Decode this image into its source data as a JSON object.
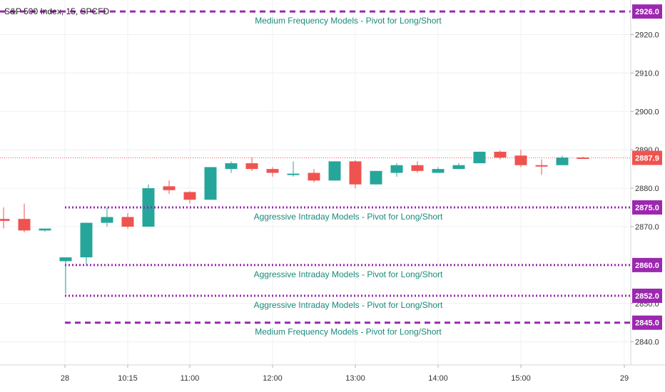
{
  "symbol_title": "S&P 500 Index, 15, SPCFD",
  "chart_data": {
    "type": "candlestick",
    "up_color": "#26a69a",
    "down_color": "#ef5350",
    "level_color": "#9c27b0",
    "last_price_color": "#ef5350",
    "grid": true,
    "x_labels": [
      "28",
      "10:15",
      "11:00",
      "12:00",
      "13:00",
      "14:00",
      "15:00",
      "29"
    ],
    "y_ticks": [
      "2840.0",
      "2850.0",
      "2870.0",
      "2880.0",
      "2890.0",
      "2900.0",
      "2910.0",
      "2920.0"
    ],
    "y_range": [
      2834,
      2929
    ],
    "last_price": {
      "value": "2887.9"
    },
    "levels": [
      {
        "price": 2926.0,
        "badge": "2926.0",
        "style": "dashed",
        "label": "Medium Frequency Models - Pivot for Long/Short",
        "label_pos": "below"
      },
      {
        "price": 2875.0,
        "badge": "2875.0",
        "style": "dotted",
        "label": "Aggressive Intraday Models - Pivot for Long/Short",
        "label_pos": "below"
      },
      {
        "price": 2860.0,
        "badge": "2860.0",
        "style": "dotted",
        "label": "Aggressive Intraday Models - Pivot for Long/Short",
        "label_pos": "below"
      },
      {
        "price": 2852.0,
        "badge": "2852.0",
        "style": "dotted",
        "label": "Aggressive Intraday Models - Pivot for Long/Short",
        "label_pos": "below"
      },
      {
        "price": 2845.0,
        "badge": "2845.0",
        "style": "dashed",
        "label": "Medium Frequency Models - Pivot for Long/Short",
        "label_pos": "below"
      }
    ],
    "candles": [
      {
        "o": 2872,
        "h": 2875,
        "l": 2869.5,
        "c": 2871.5
      },
      {
        "o": 2872,
        "h": 2876,
        "l": 2868.5,
        "c": 2869
      },
      {
        "o": 2869,
        "h": 2869.3,
        "l": 2868.7,
        "c": 2869.5
      },
      {
        "o": 2861,
        "h": 2862,
        "l": 2852.5,
        "c": 2862
      },
      {
        "o": 2862,
        "h": 2871,
        "l": 2860,
        "c": 2871
      },
      {
        "o": 2871,
        "h": 2875,
        "l": 2870,
        "c": 2872.5
      },
      {
        "o": 2872.5,
        "h": 2873.5,
        "l": 2869.5,
        "c": 2870
      },
      {
        "o": 2870,
        "h": 2881,
        "l": 2870,
        "c": 2880
      },
      {
        "o": 2880.5,
        "h": 2882,
        "l": 2878.5,
        "c": 2879.5
      },
      {
        "o": 2879,
        "h": 2879.2,
        "l": 2876,
        "c": 2877
      },
      {
        "o": 2877,
        "h": 2885.5,
        "l": 2877,
        "c": 2885.5
      },
      {
        "o": 2885,
        "h": 2887,
        "l": 2884,
        "c": 2886.5
      },
      {
        "o": 2886.5,
        "h": 2888,
        "l": 2884.5,
        "c": 2885
      },
      {
        "o": 2885,
        "h": 2885.5,
        "l": 2883,
        "c": 2884
      },
      {
        "o": 2883.5,
        "h": 2887,
        "l": 2883,
        "c": 2883.8
      },
      {
        "o": 2884,
        "h": 2885,
        "l": 2881.5,
        "c": 2882
      },
      {
        "o": 2882,
        "h": 2887,
        "l": 2882,
        "c": 2887
      },
      {
        "o": 2887,
        "h": 2887.3,
        "l": 2880,
        "c": 2881
      },
      {
        "o": 2881,
        "h": 2884.5,
        "l": 2881,
        "c": 2884.5
      },
      {
        "o": 2884,
        "h": 2886.5,
        "l": 2883,
        "c": 2886
      },
      {
        "o": 2886,
        "h": 2887,
        "l": 2884,
        "c": 2884.5
      },
      {
        "o": 2884,
        "h": 2885.5,
        "l": 2884,
        "c": 2885
      },
      {
        "o": 2885,
        "h": 2886.5,
        "l": 2885,
        "c": 2886
      },
      {
        "o": 2886.5,
        "h": 2889.5,
        "l": 2886.5,
        "c": 2889.5
      },
      {
        "o": 2889.5,
        "h": 2889.8,
        "l": 2887.5,
        "c": 2888
      },
      {
        "o": 2888.5,
        "h": 2890,
        "l": 2885.5,
        "c": 2886
      },
      {
        "o": 2886,
        "h": 2887.5,
        "l": 2883.5,
        "c": 2885.8
      },
      {
        "o": 2886,
        "h": 2888.5,
        "l": 2886,
        "c": 2888
      },
      {
        "o": 2888,
        "h": 2888.2,
        "l": 2887.8,
        "c": 2887.9
      }
    ]
  }
}
